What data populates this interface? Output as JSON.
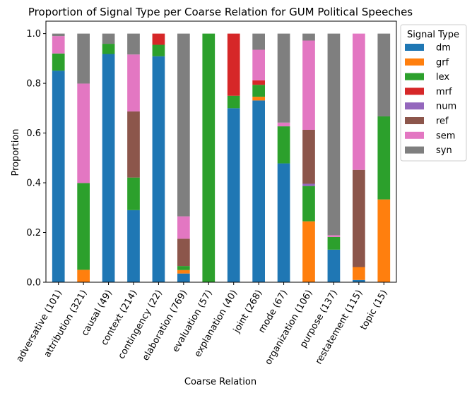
{
  "chart_data": {
    "type": "bar",
    "stacked": true,
    "title": "Proportion of Signal Type per Coarse Relation for GUM Political Speeches",
    "xlabel": "Coarse Relation",
    "ylabel": "Proportion",
    "ylim": [
      0,
      1.05
    ],
    "yticks": [
      0.0,
      0.2,
      0.4,
      0.6,
      0.8,
      1.0
    ],
    "ytick_labels": [
      "0.0",
      "0.2",
      "0.4",
      "0.6",
      "0.8",
      "1.0"
    ],
    "legend": {
      "title": "Signal Type",
      "placement": "outside-upper-right"
    },
    "categories": [
      "adversative (101)",
      "attribution (321)",
      "causal (49)",
      "context (214)",
      "contingency (22)",
      "elaboration (769)",
      "evaluation (57)",
      "explanation (40)",
      "joint (268)",
      "mode (67)",
      "organization (106)",
      "purpose (137)",
      "restatement (115)",
      "topic (15)"
    ],
    "series": [
      {
        "name": "dm",
        "color": "#1f77b4",
        "values": [
          0.851,
          0.0,
          0.918,
          0.29,
          0.909,
          0.035,
          0.0,
          0.7,
          0.731,
          0.478,
          0.0,
          0.131,
          0.009,
          0.0
        ]
      },
      {
        "name": "grf",
        "color": "#ff7f0e",
        "values": [
          0.0,
          0.05,
          0.0,
          0.0,
          0.0,
          0.014,
          0.0,
          0.0,
          0.015,
          0.0,
          0.245,
          0.0,
          0.052,
          0.333
        ]
      },
      {
        "name": "lex",
        "color": "#2ca02c",
        "values": [
          0.069,
          0.349,
          0.041,
          0.131,
          0.046,
          0.016,
          1.0,
          0.05,
          0.048,
          0.149,
          0.142,
          0.051,
          0.0,
          0.334
        ]
      },
      {
        "name": "mrf",
        "color": "#d62728",
        "values": [
          0.0,
          0.0,
          0.0,
          0.0,
          0.045,
          0.0,
          0.0,
          0.25,
          0.018,
          0.0,
          0.0,
          0.0,
          0.0,
          0.0
        ]
      },
      {
        "name": "num",
        "color": "#9467bd",
        "values": [
          0.0,
          0.0,
          0.0,
          0.0,
          0.0,
          0.0,
          0.0,
          0.0,
          0.0,
          0.0,
          0.009,
          0.0,
          0.0,
          0.0
        ]
      },
      {
        "name": "ref",
        "color": "#8c564b",
        "values": [
          0.0,
          0.0,
          0.0,
          0.266,
          0.0,
          0.11,
          0.0,
          0.0,
          0.0,
          0.0,
          0.217,
          0.0,
          0.391,
          0.0
        ]
      },
      {
        "name": "sem",
        "color": "#e377c2",
        "values": [
          0.07,
          0.4,
          0.0,
          0.229,
          0.0,
          0.09,
          0.0,
          0.0,
          0.123,
          0.015,
          0.359,
          0.007,
          0.548,
          0.0
        ]
      },
      {
        "name": "syn",
        "color": "#7f7f7f",
        "values": [
          0.01,
          0.201,
          0.041,
          0.084,
          0.0,
          0.735,
          0.0,
          0.0,
          0.065,
          0.358,
          0.028,
          0.811,
          0.0,
          0.333
        ]
      }
    ]
  }
}
